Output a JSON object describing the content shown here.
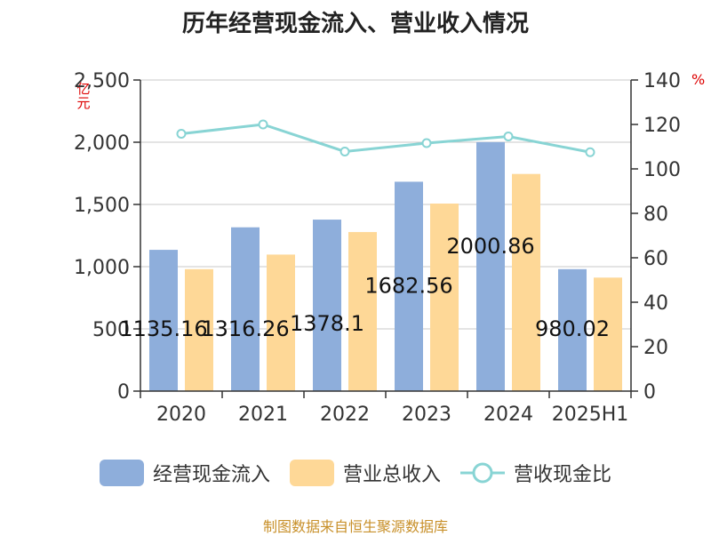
{
  "chart_data": {
    "type": "bar",
    "title": "历年经营现金流入、营业收入情况",
    "categories": [
      "2020",
      "2021",
      "2022",
      "2023",
      "2024",
      "2025H1"
    ],
    "y_left": {
      "unit": "亿元",
      "range": [
        0,
        2500
      ],
      "ticks": [
        "0",
        "500",
        "1,000",
        "1,500",
        "2,000",
        "2,500"
      ]
    },
    "y_right": {
      "unit": "%",
      "range": [
        0,
        140
      ],
      "ticks": [
        "0",
        "20",
        "40",
        "60",
        "80",
        "100",
        "120",
        "140"
      ]
    },
    "grid": true,
    "legend_position": "bottom",
    "series": [
      {
        "name": "经营现金流入",
        "type": "bar",
        "axis": "left",
        "color": "#8eaedb",
        "values": [
          1135.16,
          1316.26,
          1378.1,
          1682.56,
          2000.86,
          980.02
        ],
        "data_labels": [
          "1135.16",
          "1316.26",
          "1378.1",
          "1682.56",
          "2000.86",
          "980.02"
        ]
      },
      {
        "name": "营业总收入",
        "type": "bar",
        "axis": "left",
        "color": "#fed897",
        "values": [
          980,
          1097,
          1278,
          1507,
          1745,
          912
        ]
      },
      {
        "name": "营收现金比",
        "type": "line",
        "axis": "right",
        "color": "#88d4d4",
        "values": [
          115.8,
          120,
          107.8,
          111.6,
          114.6,
          107.5
        ]
      }
    ]
  },
  "footer": "制图数据来自恒生聚源数据库"
}
